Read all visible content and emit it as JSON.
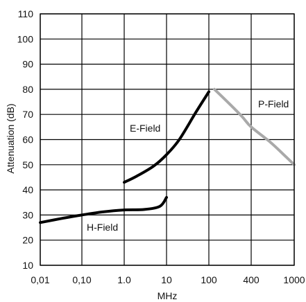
{
  "chart_data": {
    "type": "line",
    "title": "",
    "xlabel": "MHz",
    "ylabel": "Attenuation (dB)",
    "x_scale": "log",
    "x_tick_labels": [
      "0,01",
      "0,10",
      "1.0",
      "10",
      "100",
      "400",
      "1000"
    ],
    "x_tick_values": [
      0.01,
      0.1,
      1,
      10,
      100,
      400,
      1000
    ],
    "ylim": [
      10,
      110
    ],
    "y_ticks": [
      10,
      20,
      30,
      40,
      50,
      60,
      70,
      80,
      90,
      100,
      110
    ],
    "y_tick_labels": [
      "10",
      "20",
      "30",
      "40",
      "50",
      "60",
      "70",
      "80",
      "90",
      "100",
      "110"
    ],
    "grid": true,
    "series": [
      {
        "name": "H-Field",
        "color": "#000000",
        "x": [
          0.01,
          0.03,
          0.1,
          0.3,
          1,
          3,
          7,
          10
        ],
        "y": [
          27,
          28.5,
          30,
          31.2,
          32,
          32.2,
          33.5,
          37
        ]
      },
      {
        "name": "E-Field",
        "color": "#000000",
        "x": [
          1,
          2,
          5,
          10,
          20,
          50,
          100
        ],
        "y": [
          43,
          45.5,
          49.5,
          54,
          60,
          71,
          79
        ]
      },
      {
        "name": "P-Field",
        "color": "#a9a9a9",
        "x": [
          120,
          200,
          300,
          400,
          600,
          800,
          1000
        ],
        "y": [
          80,
          74,
          69,
          65,
          59,
          54,
          50
        ]
      }
    ],
    "annotations": [
      "E-Field",
      "H-Field",
      "P-Field"
    ]
  }
}
